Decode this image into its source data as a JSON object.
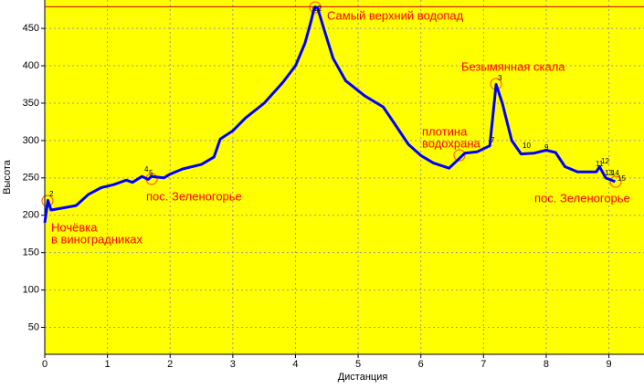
{
  "chart_data": {
    "type": "line",
    "x_label": "Дистанция",
    "y_label": "Высота",
    "x": [
      0,
      0.05,
      0.1,
      0.3,
      0.5,
      0.7,
      0.9,
      1.1,
      1.3,
      1.4,
      1.55,
      1.65,
      1.7,
      1.9,
      2.0,
      2.2,
      2.5,
      2.7,
      2.75,
      2.8,
      3.0,
      3.2,
      3.5,
      3.8,
      4.0,
      4.15,
      4.25,
      4.3,
      4.35,
      4.45,
      4.6,
      4.8,
      5.1,
      5.4,
      5.6,
      5.8,
      6.0,
      6.2,
      6.45,
      6.6,
      6.7,
      6.9,
      7.1,
      7.2,
      7.3,
      7.45,
      7.6,
      7.8,
      8.0,
      8.15,
      8.3,
      8.5,
      8.8,
      8.85,
      8.95,
      9.1
    ],
    "values": [
      190,
      220,
      207,
      210,
      213,
      228,
      237,
      241,
      247,
      244,
      252,
      248,
      252,
      250,
      255,
      262,
      268,
      278,
      290,
      302,
      313,
      330,
      350,
      378,
      400,
      430,
      460,
      478,
      478,
      450,
      410,
      380,
      360,
      345,
      320,
      295,
      280,
      270,
      263,
      275,
      283,
      285,
      293,
      375,
      350,
      300,
      282,
      283,
      287,
      284,
      265,
      258,
      258,
      265,
      250,
      245
    ],
    "color": "#0000ff",
    "max_line": 479,
    "max_line_color": "#cc0000",
    "xlim": [
      0,
      9.56
    ],
    "ylim": [
      14,
      488
    ],
    "xticks": [
      0,
      1,
      2,
      3,
      4,
      5,
      6,
      7,
      8,
      9
    ],
    "yticks": [
      50,
      100,
      150,
      200,
      250,
      300,
      350,
      400,
      450
    ],
    "grid": true,
    "annotations": [
      "Самый верхний водопад",
      "Безымянная скала",
      "плотина",
      "водохрана",
      "пос. Зеленогорье",
      "пос. Зеленогорье",
      "Ночёвка",
      "в виноградниках"
    ],
    "waypoint_labels": [
      "2",
      "4",
      "5",
      "12",
      "7",
      "3",
      "10",
      "9",
      "11",
      "12",
      "13",
      "14",
      "15"
    ]
  }
}
